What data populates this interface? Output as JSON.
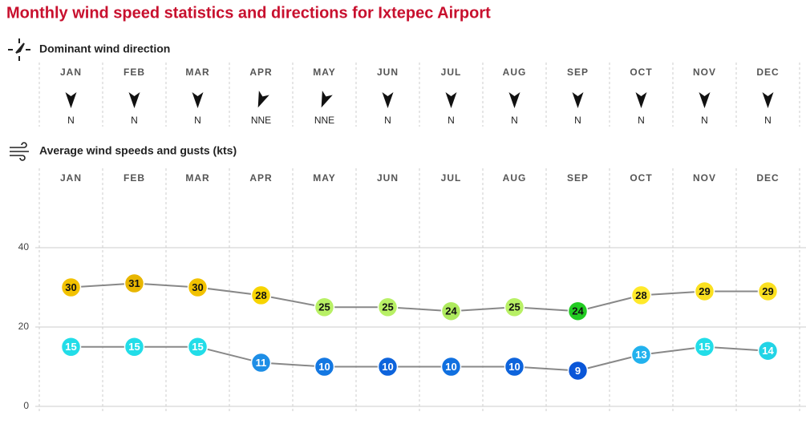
{
  "title": "Monthly wind speed statistics and directions for Ixtepec Airport",
  "directions": {
    "heading": "Dominant wind direction",
    "months": [
      "JAN",
      "FEB",
      "MAR",
      "APR",
      "MAY",
      "JUN",
      "JUL",
      "AUG",
      "SEP",
      "OCT",
      "NOV",
      "DEC"
    ],
    "labels": [
      "N",
      "N",
      "N",
      "NNE",
      "NNE",
      "N",
      "N",
      "N",
      "N",
      "N",
      "N",
      "N"
    ],
    "bearings": [
      0,
      0,
      0,
      22.5,
      22.5,
      0,
      0,
      0,
      0,
      0,
      0,
      0
    ]
  },
  "chart_data": {
    "type": "line",
    "title": "Average wind speeds and gusts (kts)",
    "categories": [
      "JAN",
      "FEB",
      "MAR",
      "APR",
      "MAY",
      "JUN",
      "JUL",
      "AUG",
      "SEP",
      "OCT",
      "NOV",
      "DEC"
    ],
    "ylim": [
      0,
      60
    ],
    "yticks": [
      0,
      20,
      40
    ],
    "grid": true,
    "series": [
      {
        "color": "#888888",
        "values": [
          30,
          31,
          30,
          28,
          25,
          25,
          24,
          25,
          24,
          28,
          29,
          29
        ],
        "colors": [
          "#f2c200",
          "#e8b600",
          "#f2c200",
          "#f7d400",
          "#b8f065",
          "#b8f065",
          "#aeea5e",
          "#b8f065",
          "#22cc22",
          "#ffe92a",
          "#fbe020",
          "#fbe020"
        ]
      },
      {
        "color": "#888888",
        "values": [
          15,
          15,
          15,
          11,
          10,
          10,
          10,
          10,
          9,
          13,
          15,
          14
        ],
        "colors": [
          "#22dde8",
          "#22dde8",
          "#22dde8",
          "#1e8ee6",
          "#1478e2",
          "#0e64dc",
          "#1070e0",
          "#0e64dc",
          "#0a56d8",
          "#22b2ee",
          "#22dde8",
          "#22d4e6"
        ]
      }
    ]
  }
}
